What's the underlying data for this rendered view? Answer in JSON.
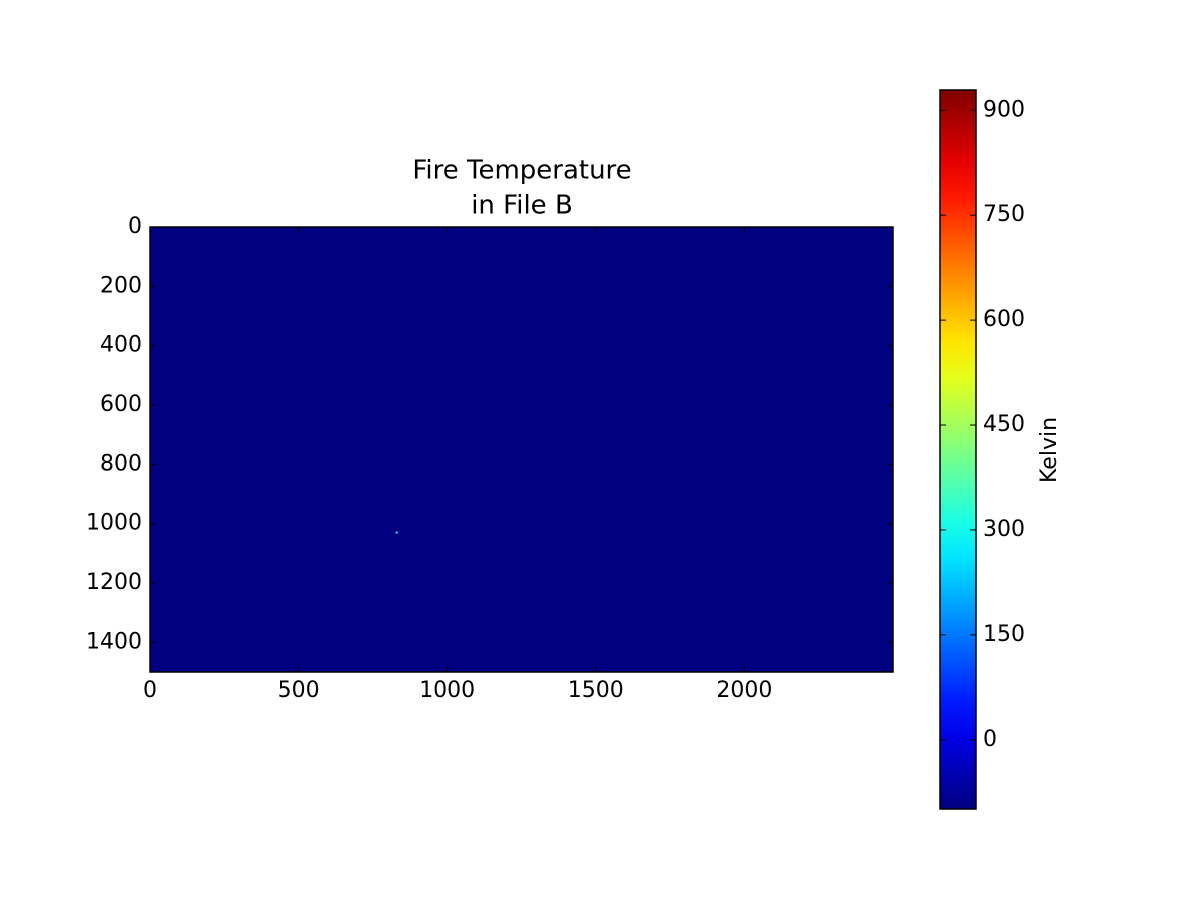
{
  "chart_data": {
    "type": "heatmap",
    "title": [
      "Fire Temperature",
      "in File B"
    ],
    "colormap": "jet",
    "colorbar_label": "Kelvin",
    "xlim": [
      0,
      2500
    ],
    "xticks": [
      0,
      500,
      1000,
      1500,
      2000
    ],
    "ylim": [
      1500,
      0
    ],
    "yticks": [
      0,
      200,
      400,
      600,
      800,
      1000,
      1200,
      1400
    ],
    "clim": [
      -99,
      929
    ],
    "cticks": [
      0,
      150,
      300,
      450,
      600,
      750,
      900
    ],
    "background_value": -99,
    "points": [
      {
        "x": 830,
        "y": 1030,
        "value": 300
      }
    ]
  }
}
